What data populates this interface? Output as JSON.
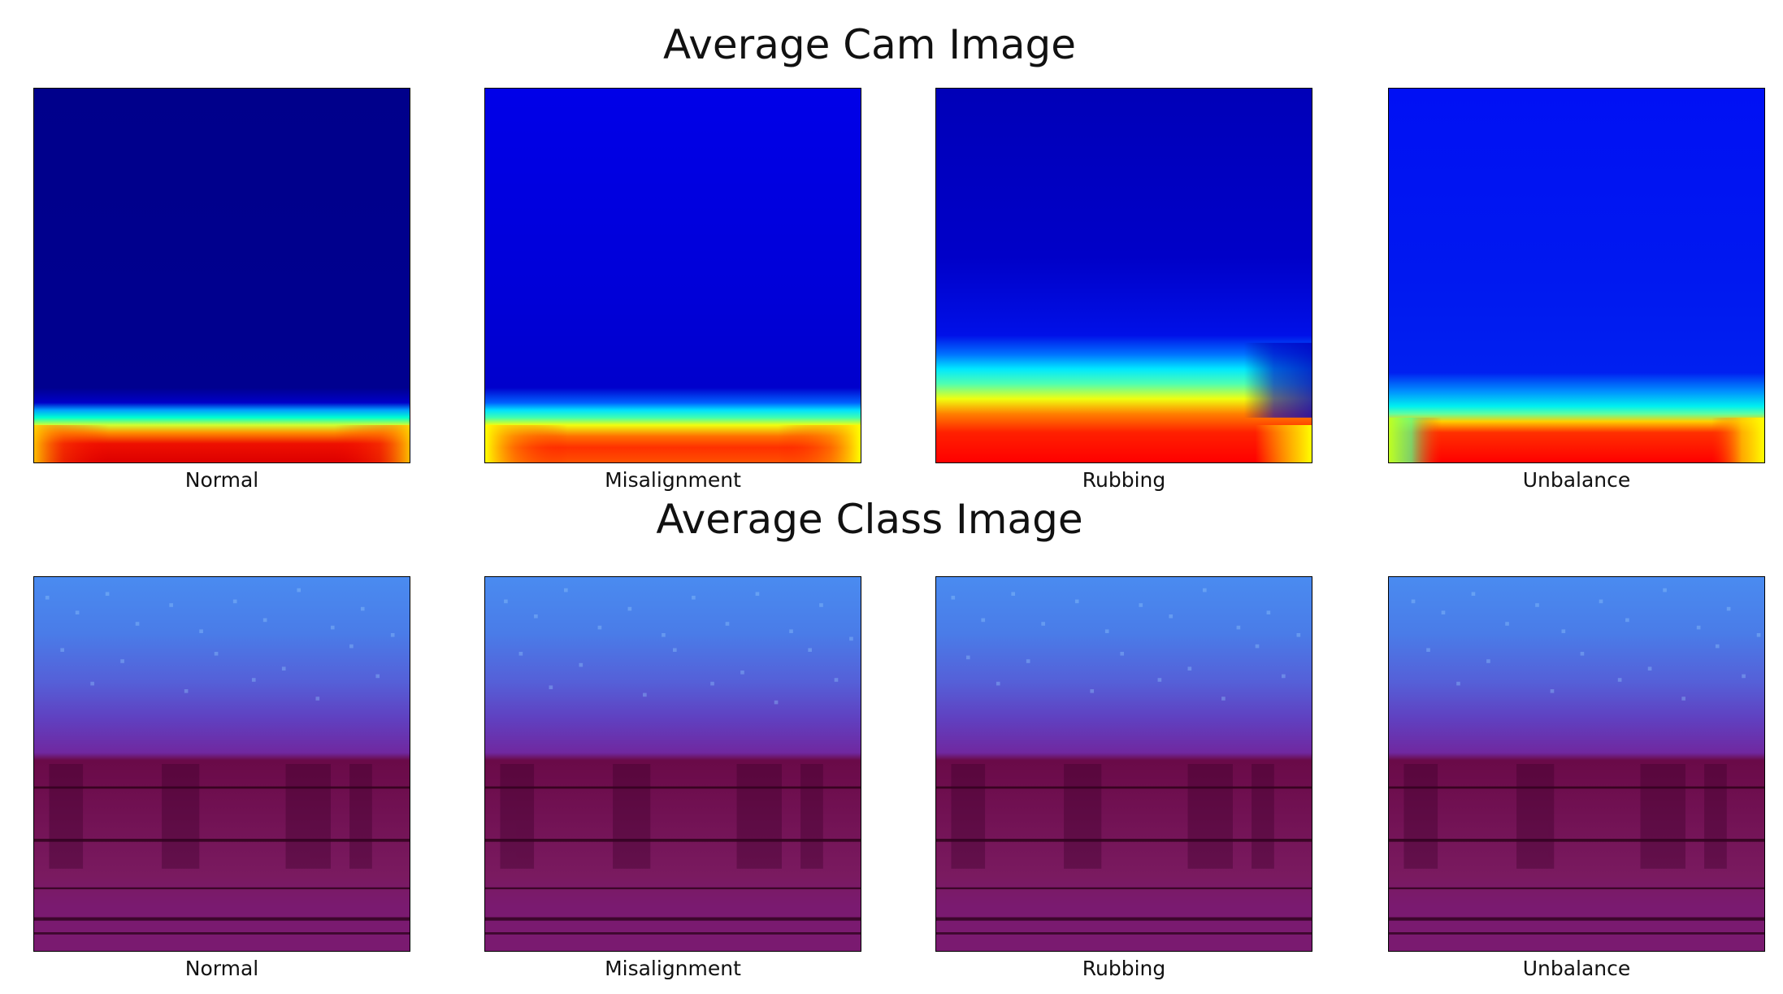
{
  "chart_data": [
    {
      "type": "heatmap",
      "title": "Average Cam Image",
      "colormap": "jet",
      "panels": [
        {
          "label": "Normal"
        },
        {
          "label": "Misalignment"
        },
        {
          "label": "Rubbing"
        },
        {
          "label": "Unbalance"
        }
      ]
    },
    {
      "type": "heatmap",
      "title": "Average Class Image",
      "colormap": "spectrogram",
      "panels": [
        {
          "label": "Normal"
        },
        {
          "label": "Misalignment"
        },
        {
          "label": "Rubbing"
        },
        {
          "label": "Unbalance"
        }
      ]
    }
  ],
  "colors": {
    "jet_deep": "#00008b",
    "jet_blue": "#0000e0",
    "jet_cyan": "#00ffe0",
    "jet_yellow": "#ffff00",
    "jet_red": "#dd0000",
    "spec_light": "#4a8bf0",
    "spec_mid": "#6040c0",
    "spec_dark": "#6a0a48"
  }
}
